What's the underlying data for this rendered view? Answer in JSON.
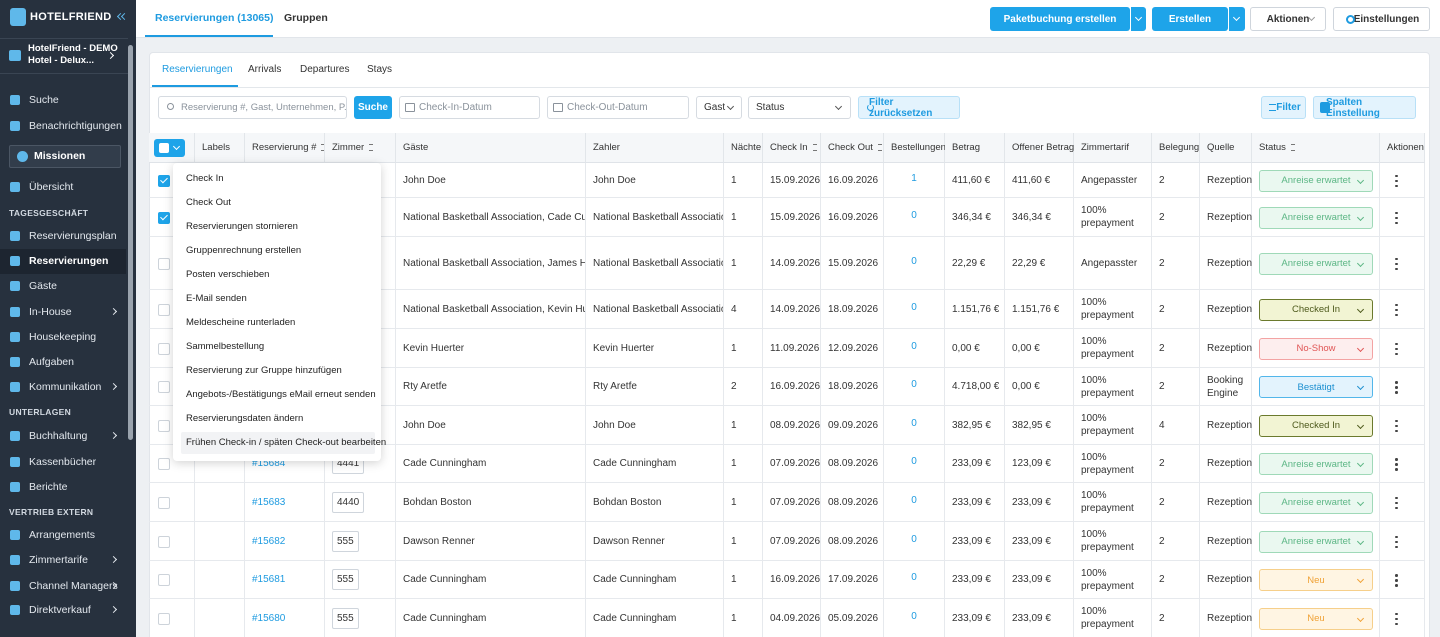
{
  "sidebar": {
    "brand": "HOTELFRIEND",
    "hotel": [
      "HotelFriend - DEMO",
      "Hotel - Delux..."
    ],
    "menu": [
      {
        "label": "Suche",
        "kind": "item"
      },
      {
        "label": "Benachrichtigungen",
        "kind": "item"
      },
      {
        "label": "Missionen",
        "kind": "button"
      },
      {
        "label": "Übersicht",
        "kind": "item"
      },
      {
        "label": "TAGESGESCHÄFT",
        "kind": "heading"
      },
      {
        "label": "Reservierungsplan",
        "kind": "item"
      },
      {
        "label": "Reservierungen",
        "kind": "item",
        "active": true
      },
      {
        "label": "Gäste",
        "kind": "item"
      },
      {
        "label": "In-House",
        "kind": "item",
        "submenu": true
      },
      {
        "label": "Housekeeping",
        "kind": "item"
      },
      {
        "label": "Aufgaben",
        "kind": "item"
      },
      {
        "label": "Kommunikation",
        "kind": "item",
        "submenu": true
      },
      {
        "label": "UNTERLAGEN",
        "kind": "heading"
      },
      {
        "label": "Buchhaltung",
        "kind": "item",
        "submenu": true
      },
      {
        "label": "Kassenbücher",
        "kind": "item"
      },
      {
        "label": "Berichte",
        "kind": "item"
      },
      {
        "label": "VERTRIEB EXTERN",
        "kind": "heading"
      },
      {
        "label": "Arrangements",
        "kind": "item"
      },
      {
        "label": "Zimmertarife",
        "kind": "item",
        "submenu": true
      },
      {
        "label": "Channel Managers",
        "kind": "item",
        "submenu": true
      },
      {
        "label": "Direktverkauf",
        "kind": "item",
        "submenu": true
      }
    ]
  },
  "topbar": {
    "tabs": [
      "Reservierungen (13065)",
      "Gruppen"
    ],
    "package": "Paketbuchung erstellen",
    "create": "Erstellen",
    "actions": "Aktionen",
    "settings": "Einstellungen"
  },
  "subtabs": [
    "Reservierungen",
    "Arrivals",
    "Departures",
    "Stays"
  ],
  "filters": {
    "search_placeholder": "Reservierung #, Gast, Unternehmen, P...",
    "search_button": "Suche",
    "check_in": "Check-In-Datum",
    "check_out": "Check-Out-Datum",
    "guest": "Gast",
    "status": "Status",
    "reset": "Filter zurücksetzen",
    "filter": "Filter",
    "columns": "Spalten Einstellung"
  },
  "table": {
    "headers": [
      {
        "label": "Labels"
      },
      {
        "label": "Reservierung #",
        "sortable": true
      },
      {
        "label": "Zimmer",
        "sortable": true
      },
      {
        "label": "Gäste"
      },
      {
        "label": "Zahler"
      },
      {
        "label": "Nächte"
      },
      {
        "label": "Check In",
        "sortable": true
      },
      {
        "label": "Check Out",
        "sortable": true
      },
      {
        "label": "Bestellungen"
      },
      {
        "label": "Betrag"
      },
      {
        "label": "Offener Betrag"
      },
      {
        "label": "Zimmertarif"
      },
      {
        "label": "Belegung"
      },
      {
        "label": "Quelle"
      },
      {
        "label": "Status",
        "sortable": true
      },
      {
        "label": "Aktionen"
      }
    ],
    "rows": [
      {
        "selected": true,
        "reservation": null,
        "room": null,
        "guests": "John Doe",
        "payer": "John Doe",
        "nights": 1,
        "check_in": "15.09.2026",
        "check_out": "16.09.2026",
        "orders": 1,
        "amount": "411,60 €",
        "open_amount": "411,60 €",
        "rate": "Angepasster",
        "occupancy": 2,
        "source": "Rezeption",
        "status": "Anreise erwartet",
        "status_tone": "green"
      },
      {
        "selected": true,
        "reservation": null,
        "room": null,
        "guests": "National Basketball Association, Cade Cunnir",
        "payer": "National Basketball Association",
        "nights": 1,
        "check_in": "15.09.2026",
        "check_out": "16.09.2026",
        "orders": 0,
        "amount": "346,34 €",
        "open_amount": "346,34 €",
        "rate": "100% prepayment",
        "occupancy": 2,
        "source": "Rezeption",
        "status": "Anreise erwartet",
        "status_tone": "green"
      },
      {
        "selected": false,
        "reservation": null,
        "room": null,
        "guests": "National Basketball Association, James Hard",
        "payer": "National Basketball Association",
        "nights": 1,
        "check_in": "14.09.2026",
        "check_out": "15.09.2026",
        "orders": 0,
        "amount": "22,29 €",
        "open_amount": "22,29 €",
        "rate": "Angepasster",
        "occupancy": 2,
        "source": "Rezeption",
        "status": "Anreise erwartet",
        "status_tone": "green"
      },
      {
        "selected": false,
        "reservation": null,
        "room": null,
        "guests": "National Basketball Association, Kevin Huerte",
        "payer": "National Basketball Association",
        "nights": 4,
        "check_in": "14.09.2026",
        "check_out": "18.09.2026",
        "orders": 0,
        "amount": "1.151,76 €",
        "open_amount": "1.151,76 €",
        "rate": "100% prepayment",
        "occupancy": 2,
        "source": "Rezeption",
        "status": "Checked In",
        "status_tone": "olive"
      },
      {
        "selected": false,
        "reservation": null,
        "room": null,
        "guests": "Kevin Huerter",
        "payer": "Kevin Huerter",
        "nights": 1,
        "check_in": "11.09.2026",
        "check_out": "12.09.2026",
        "orders": 0,
        "amount": "0,00 €",
        "open_amount": "0,00 €",
        "rate": "100% prepayment",
        "occupancy": 2,
        "source": "Rezeption",
        "status": "No-Show",
        "status_tone": "red"
      },
      {
        "selected": false,
        "reservation": null,
        "room": null,
        "guests": "Rty Aretfe",
        "payer": "Rty Aretfe",
        "nights": 2,
        "check_in": "16.09.2026",
        "check_out": "18.09.2026",
        "orders": 0,
        "amount": "4.718,00 €",
        "open_amount": "0,00 €",
        "rate": "100% prepayment",
        "occupancy": 2,
        "source": "Booking Engine",
        "status": "Bestätigt",
        "status_tone": "blue"
      },
      {
        "selected": false,
        "reservation": null,
        "room": null,
        "guests": "John Doe",
        "payer": "John Doe",
        "nights": 1,
        "check_in": "08.09.2026",
        "check_out": "09.09.2026",
        "orders": 0,
        "amount": "382,95 €",
        "open_amount": "382,95 €",
        "rate": "100% prepayment",
        "occupancy": 4,
        "source": "Rezeption",
        "status": "Checked In",
        "status_tone": "olive"
      },
      {
        "selected": false,
        "reservation": "#15684",
        "room": "4441",
        "guests": "Cade Cunningham",
        "payer": "Cade Cunningham",
        "nights": 1,
        "check_in": "07.09.2026",
        "check_out": "08.09.2026",
        "orders": 0,
        "amount": "233,09 €",
        "open_amount": "123,09 €",
        "rate": "100% prepayment",
        "occupancy": 2,
        "source": "Rezeption",
        "status": "Anreise erwartet",
        "status_tone": "green"
      },
      {
        "selected": false,
        "reservation": "#15683",
        "room": "4440",
        "guests": "Bohdan Boston",
        "payer": "Bohdan Boston",
        "nights": 1,
        "check_in": "07.09.2026",
        "check_out": "08.09.2026",
        "orders": 0,
        "amount": "233,09 €",
        "open_amount": "233,09 €",
        "rate": "100% prepayment",
        "occupancy": 2,
        "source": "Rezeption",
        "status": "Anreise erwartet",
        "status_tone": "green"
      },
      {
        "selected": false,
        "reservation": "#15682",
        "room": "555",
        "guests": "Dawson Renner",
        "payer": "Dawson Renner",
        "nights": 1,
        "check_in": "07.09.2026",
        "check_out": "08.09.2026",
        "orders": 0,
        "amount": "233,09 €",
        "open_amount": "233,09 €",
        "rate": "100% prepayment",
        "occupancy": 2,
        "source": "Rezeption",
        "status": "Anreise erwartet",
        "status_tone": "green"
      },
      {
        "selected": false,
        "reservation": "#15681",
        "room": "555",
        "guests": "Cade Cunningham",
        "payer": "Cade Cunningham",
        "nights": 1,
        "check_in": "16.09.2026",
        "check_out": "17.09.2026",
        "orders": 0,
        "amount": "233,09 €",
        "open_amount": "233,09 €",
        "rate": "100% prepayment",
        "occupancy": 2,
        "source": "Rezeption",
        "status": "Neu",
        "status_tone": "orange"
      },
      {
        "selected": false,
        "reservation": "#15680",
        "room": "555",
        "guests": "Cade Cunningham",
        "payer": "Cade Cunningham",
        "nights": 1,
        "check_in": "04.09.2026",
        "check_out": "05.09.2026",
        "orders": 0,
        "amount": "233,09 €",
        "open_amount": "233,09 €",
        "rate": "100% prepayment",
        "occupancy": 2,
        "source": "Rezeption",
        "status": "Neu",
        "status_tone": "orange"
      }
    ]
  },
  "bulk_menu": {
    "highlighted": 11,
    "items": [
      "Check In",
      "Check Out",
      "Reservierungen stornieren",
      "Gruppenrechnung erstellen",
      "Posten verschieben",
      "E-Mail senden",
      "Meldescheine runterladen",
      "Sammelbestellung",
      "Reservierung zur Gruppe hinzufügen",
      "Angebots-/Bestätigungs eMail erneut senden",
      "Reservierungsdaten ändern",
      "Frühen Check-in / späten Check-out bearbeiten"
    ]
  }
}
